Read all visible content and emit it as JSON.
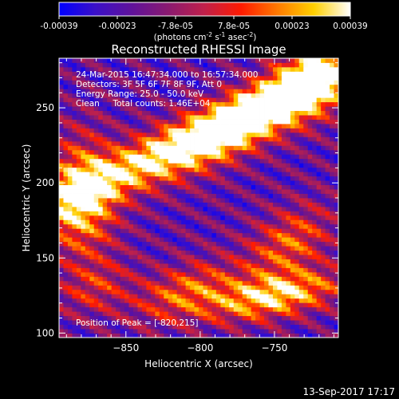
{
  "chart_data": {
    "type": "heatmap",
    "title": "Reconstructed RHESSI Image",
    "xlabel": "Heliocentric X (arcsec)",
    "ylabel": "Heliocentric Y (arcsec)",
    "xlim": [
      -895,
      -707
    ],
    "ylim": [
      97,
      283
    ],
    "x_ticks": [
      -850,
      -800,
      -750
    ],
    "y_ticks": [
      100,
      150,
      200,
      250
    ],
    "colorbar": {
      "ticks": [
        "-0.00039",
        "-0.00023",
        "-7.8e-05",
        "7.8e-05",
        "0.00023",
        "0.00039"
      ],
      "range": [
        -0.00039,
        0.00039
      ],
      "unit_label": "(photons cm",
      "unit_sup1": "-2",
      "unit_mid": " s",
      "unit_sup2": "-1",
      "unit_mid2": " asec",
      "unit_sup3": "-2",
      "unit_end": ")",
      "colors": [
        "#0000ff",
        "#3b10c8",
        "#60129a",
        "#8a1a70",
        "#c0204a",
        "#ff1a00",
        "#ff7a00",
        "#ffd000",
        "#ffffff"
      ]
    },
    "annotations": [
      "24-Mar-2015 16:47:34.000 to 16:57:34.000",
      "Detectors: 3F 5F 6F 7F 8F 9F, Att 0",
      "Energy Range: 25.0 - 50.0 keV",
      "Clean     Total counts: 1.46E+04"
    ],
    "peak_label": "Position of Peak = [-820,215]",
    "peak": [
      -820,
      215
    ],
    "sources": [
      {
        "x": -812,
        "y": 226,
        "sx": 70,
        "sy": 11,
        "angle": 25,
        "amp": 1.0
      },
      {
        "x": -765,
        "y": 243,
        "sx": 40,
        "sy": 12,
        "angle": 30,
        "amp": 0.85
      },
      {
        "x": -723,
        "y": 268,
        "sx": 20,
        "sy": 15,
        "angle": 40,
        "amp": 0.8
      },
      {
        "x": -880,
        "y": 190,
        "sx": 16,
        "sy": 28,
        "angle": 0,
        "amp": 0.8
      },
      {
        "x": -750,
        "y": 125,
        "sx": 32,
        "sy": 10,
        "angle": 10,
        "amp": 0.9
      },
      {
        "x": -740,
        "y": 160,
        "sx": 22,
        "sy": 14,
        "angle": 35,
        "amp": 0.55
      },
      {
        "x": -810,
        "y": 128,
        "sx": 25,
        "sy": 12,
        "angle": 20,
        "amp": 0.55
      },
      {
        "x": -870,
        "y": 130,
        "sx": 18,
        "sy": 12,
        "angle": 20,
        "amp": 0.35
      }
    ],
    "background": {
      "level": -0.15,
      "stripe_amp": 0.3,
      "stripe_period": 14,
      "stripe_angle": 62
    },
    "grid": false
  },
  "footer": {
    "timestamp": "13-Sep-2017 17:17"
  }
}
